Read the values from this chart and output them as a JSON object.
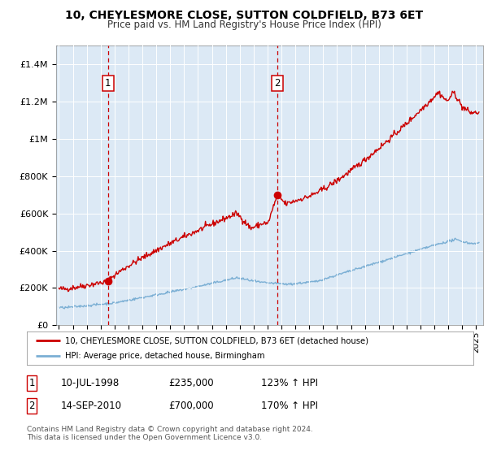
{
  "title": "10, CHEYLESMORE CLOSE, SUTTON COLDFIELD, B73 6ET",
  "subtitle": "Price paid vs. HM Land Registry's House Price Index (HPI)",
  "bg_color": "#dce9f5",
  "red_line_color": "#cc0000",
  "blue_line_color": "#7bafd4",
  "grid_color": "#ffffff",
  "sale1_date": 1998.53,
  "sale1_price": 235000,
  "sale2_date": 2010.71,
  "sale2_price": 700000,
  "ylim_max": 1500000,
  "xlim_min": 1994.8,
  "xlim_max": 2025.5,
  "ytick_values": [
    0,
    200000,
    400000,
    600000,
    800000,
    1000000,
    1200000,
    1400000
  ],
  "ytick_labels": [
    "£0",
    "£200K",
    "£400K",
    "£600K",
    "£800K",
    "£1M",
    "£1.2M",
    "£1.4M"
  ],
  "xtick_years": [
    1995,
    1996,
    1997,
    1998,
    1999,
    2000,
    2001,
    2002,
    2003,
    2004,
    2005,
    2006,
    2007,
    2008,
    2009,
    2010,
    2011,
    2012,
    2013,
    2014,
    2015,
    2016,
    2017,
    2018,
    2019,
    2020,
    2021,
    2022,
    2023,
    2024,
    2025
  ],
  "legend_label1": "10, CHEYLESMORE CLOSE, SUTTON COLDFIELD, B73 6ET (detached house)",
  "legend_label2": "HPI: Average price, detached house, Birmingham",
  "footer1": "Contains HM Land Registry data © Crown copyright and database right 2024.",
  "footer2": "This data is licensed under the Open Government Licence v3.0.",
  "table_row1": [
    "1",
    "10-JUL-1998",
    "£235,000",
    "123% ↑ HPI"
  ],
  "table_row2": [
    "2",
    "14-SEP-2010",
    "£700,000",
    "170% ↑ HPI"
  ]
}
